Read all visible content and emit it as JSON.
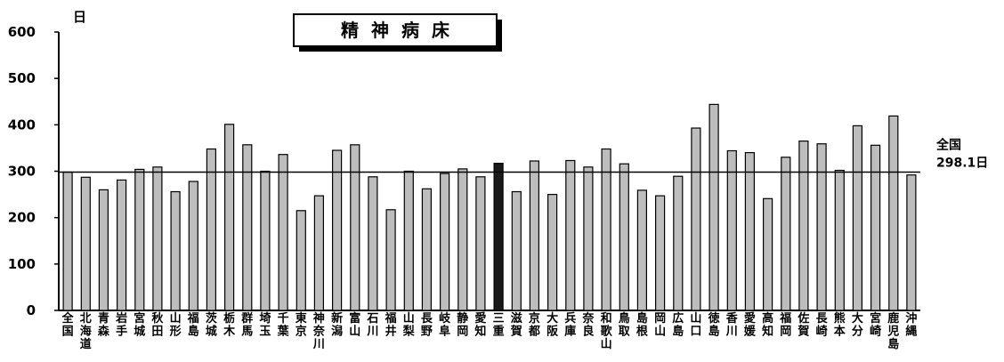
{
  "chart_data": {
    "type": "bar",
    "title": "精神病床",
    "ylabel": "日",
    "ylim": [
      0,
      600
    ],
    "yticks": [
      0,
      100,
      200,
      300,
      400,
      500,
      600
    ],
    "grid": false,
    "legend": "none",
    "colors": {
      "bar": "#bdbdbd",
      "bar_stroke": "#000000",
      "highlight": "#1a1a1a"
    },
    "categories": [
      "全国",
      "北海道",
      "青森",
      "岩手",
      "宮城",
      "秋田",
      "山形",
      "福島",
      "茨城",
      "栃木",
      "群馬",
      "埼玉",
      "千葉",
      "東京",
      "神奈川",
      "新潟",
      "富山",
      "石川",
      "福井",
      "山梨",
      "長野",
      "岐阜",
      "静岡",
      "愛知",
      "三重",
      "滋賀",
      "京都",
      "大阪",
      "兵庫",
      "奈良",
      "和歌山",
      "鳥取",
      "島根",
      "岡山",
      "広島",
      "山口",
      "徳島",
      "香川",
      "愛媛",
      "高知",
      "福岡",
      "佐賀",
      "長崎",
      "熊本",
      "大分",
      "宮崎",
      "鹿児島",
      "沖縄"
    ],
    "values": [
      298,
      287,
      260,
      281,
      304,
      309,
      256,
      278,
      348,
      401,
      357,
      300,
      336,
      215,
      247,
      345,
      357,
      288,
      217,
      300,
      262,
      295,
      305,
      288,
      317,
      256,
      322,
      250,
      323,
      309,
      348,
      316,
      259,
      247,
      289,
      393,
      444,
      344,
      340,
      241,
      330,
      365,
      359,
      302,
      398,
      356,
      419,
      292
    ],
    "highlight_category": "三重",
    "reference_line": {
      "value": 298.1,
      "label_line1": "全国",
      "label_line2": "298.1日"
    }
  }
}
